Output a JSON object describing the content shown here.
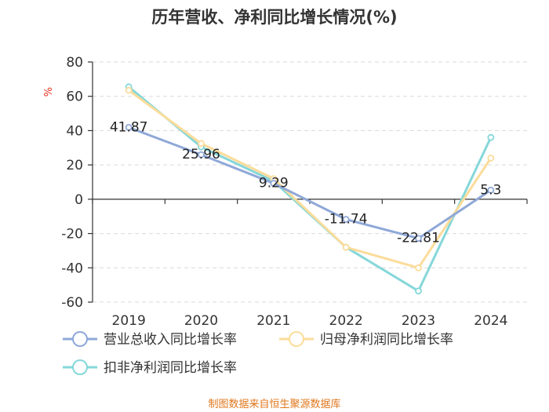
{
  "chart_data": {
    "type": "line",
    "title": "历年营收、净利同比增长情况(%)",
    "ylabel": "%",
    "xlabel": "",
    "ylim": [
      -60,
      80
    ],
    "yticks": [
      80,
      60,
      40,
      20,
      0,
      -20,
      -40,
      -60
    ],
    "categories": [
      "2019",
      "2020",
      "2021",
      "2022",
      "2023",
      "2024"
    ],
    "series": [
      {
        "name": "营业总收入同比增长率",
        "color": "#8fa8d8",
        "values": [
          41.87,
          25.96,
          9.29,
          -11.74,
          -22.81,
          5.3
        ],
        "labels": [
          "41.87",
          "25.96",
          "9.29",
          "-11.74",
          "-22.81",
          "5.3"
        ]
      },
      {
        "name": "归母净利润同比增长率",
        "color": "#fbdc9a",
        "values": [
          63.5,
          32.5,
          12.0,
          -28.0,
          -40.0,
          24.0
        ]
      },
      {
        "name": "扣非净利润同比增长率",
        "color": "#85d7d9",
        "values": [
          65.5,
          30.5,
          10.5,
          -28.0,
          -53.5,
          36.0
        ]
      }
    ],
    "source": "制图数据来自恒生聚源数据库"
  }
}
